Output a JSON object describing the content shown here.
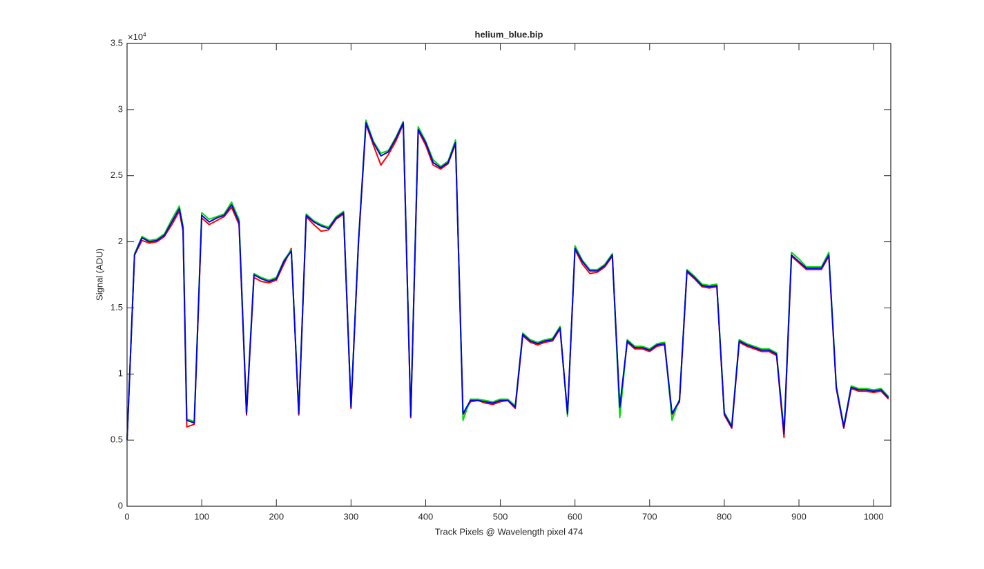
{
  "chart_data": {
    "type": "line",
    "title": "helium_blue.bip",
    "xlabel": "Track Pixels @ Wavelength pixel 474",
    "ylabel": "Signal (ADU)",
    "y_multiplier": {
      "base": "×10",
      "exponent": "4"
    },
    "x": [
      0,
      10,
      20,
      30,
      40,
      50,
      60,
      70,
      75,
      80,
      90,
      100,
      110,
      120,
      130,
      140,
      150,
      160,
      170,
      180,
      190,
      200,
      210,
      220,
      230,
      240,
      250,
      260,
      270,
      280,
      290,
      300,
      310,
      320,
      330,
      340,
      350,
      360,
      370,
      380,
      390,
      400,
      410,
      420,
      430,
      440,
      450,
      460,
      470,
      480,
      490,
      500,
      510,
      520,
      530,
      540,
      550,
      560,
      570,
      580,
      590,
      600,
      610,
      620,
      630,
      640,
      650,
      660,
      670,
      680,
      690,
      700,
      710,
      720,
      730,
      740,
      750,
      760,
      770,
      780,
      790,
      800,
      810,
      820,
      830,
      840,
      850,
      860,
      870,
      880,
      890,
      900,
      910,
      920,
      930,
      940,
      950,
      960,
      970,
      980,
      990,
      1000,
      1010,
      1020
    ],
    "series": [
      {
        "name": "red",
        "color": "#ff0000",
        "values": [
          5000,
          19000,
          20100,
          19900,
          20000,
          20400,
          21300,
          22300,
          20800,
          6000,
          6200,
          21800,
          21300,
          21600,
          21900,
          22600,
          21300,
          6900,
          17300,
          17000,
          16900,
          17100,
          18300,
          19500,
          6900,
          21900,
          21300,
          20800,
          20900,
          21700,
          22100,
          7400,
          19900,
          28900,
          27300,
          25800,
          26600,
          27600,
          28900,
          6700,
          28400,
          27300,
          25800,
          25500,
          25900,
          27400,
          6900,
          7900,
          8000,
          7800,
          7700,
          7900,
          8000,
          7400,
          12900,
          12400,
          12200,
          12400,
          12500,
          13400,
          6900,
          19400,
          18300,
          17600,
          17700,
          18100,
          18900,
          7400,
          12400,
          11900,
          11900,
          11700,
          12100,
          12200,
          6900,
          7900,
          17700,
          17200,
          16600,
          16500,
          16600,
          6900,
          5900,
          12400,
          12100,
          11900,
          11700,
          11700,
          11400,
          5200,
          18900,
          18400,
          17900,
          17900,
          17900,
          18900,
          8900,
          5900,
          8900,
          8700,
          8700,
          8600,
          8700,
          8100
        ]
      },
      {
        "name": "green",
        "color": "#00dd00",
        "values": [
          5000,
          19100,
          20400,
          20100,
          20200,
          20600,
          21700,
          22700,
          21200,
          6600,
          6400,
          22200,
          21700,
          21900,
          22100,
          23000,
          21700,
          7100,
          17600,
          17300,
          17100,
          17300,
          18600,
          19400,
          7100,
          22100,
          21600,
          21300,
          21100,
          21900,
          22300,
          7600,
          20100,
          29200,
          27600,
          26700,
          26900,
          27900,
          29100,
          6900,
          28700,
          27600,
          26200,
          25700,
          26100,
          27700,
          6500,
          8100,
          8100,
          8000,
          7900,
          8100,
          8100,
          7600,
          13100,
          12600,
          12400,
          12600,
          12700,
          13600,
          6800,
          19700,
          18600,
          17900,
          17900,
          18300,
          19100,
          6700,
          12600,
          12100,
          12100,
          11900,
          12300,
          12400,
          6500,
          8100,
          17900,
          17400,
          16800,
          16700,
          16800,
          7100,
          6100,
          12600,
          12300,
          12100,
          11900,
          11900,
          11600,
          5600,
          19200,
          18700,
          18100,
          18100,
          18100,
          19200,
          9100,
          6100,
          9100,
          8900,
          8900,
          8800,
          8900,
          8300
        ]
      },
      {
        "name": "blue",
        "color": "#0000ee",
        "values": [
          5000,
          19000,
          20300,
          20000,
          20100,
          20500,
          21500,
          22500,
          21000,
          6500,
          6300,
          22000,
          21500,
          21800,
          22000,
          22800,
          21500,
          7000,
          17500,
          17200,
          17000,
          17200,
          18500,
          19300,
          7000,
          22000,
          21500,
          21200,
          21000,
          21800,
          22200,
          7500,
          20000,
          29000,
          27500,
          26500,
          26800,
          27800,
          29000,
          6800,
          28500,
          27500,
          26000,
          25600,
          26000,
          27500,
          7000,
          8000,
          8000,
          7900,
          7800,
          8000,
          8000,
          7500,
          13000,
          12500,
          12300,
          12500,
          12600,
          13500,
          7000,
          19500,
          18500,
          17800,
          17800,
          18200,
          19000,
          7500,
          12500,
          12000,
          12000,
          11800,
          12200,
          12300,
          7000,
          8000,
          17800,
          17300,
          16700,
          16600,
          16700,
          7000,
          6000,
          12500,
          12200,
          12000,
          11800,
          11800,
          11500,
          5500,
          19000,
          18500,
          18000,
          18000,
          18000,
          19000,
          9000,
          6000,
          9000,
          8800,
          8800,
          8700,
          8800,
          8200
        ]
      }
    ],
    "xlim": [
      0,
      1023
    ],
    "ylim": [
      0,
      35000
    ],
    "xticks": [
      0,
      100,
      200,
      300,
      400,
      500,
      600,
      700,
      800,
      900,
      1000
    ],
    "yticks": [
      0,
      {
        "value": 5000,
        "label": "0.5"
      },
      {
        "value": 10000,
        "label": "1"
      },
      {
        "value": 15000,
        "label": "1.5"
      },
      {
        "value": 20000,
        "label": "2"
      },
      {
        "value": 25000,
        "label": "2.5"
      },
      {
        "value": 30000,
        "label": "3"
      },
      {
        "value": 35000,
        "label": "3.5"
      }
    ],
    "grid": false
  }
}
